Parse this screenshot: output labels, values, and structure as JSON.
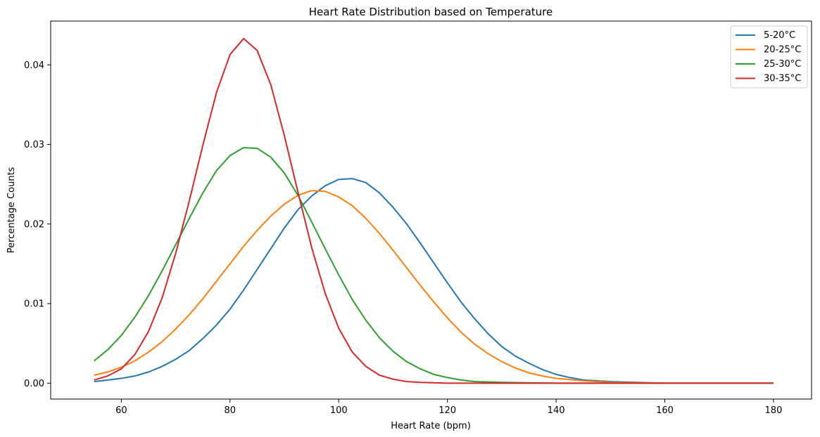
{
  "chart_data": {
    "type": "line",
    "title": "Heart Rate Distribution based on Temperature",
    "xlabel": "Heart Rate (bpm)",
    "ylabel": "Percentage Counts",
    "xlim": [
      47,
      187
    ],
    "ylim": [
      -0.002,
      0.0455
    ],
    "xticks": [
      "60",
      "80",
      "100",
      "120",
      "140",
      "160",
      "180"
    ],
    "yticks": [
      "0.00",
      "0.01",
      "0.02",
      "0.03",
      "0.04"
    ],
    "grid": false,
    "legend_position": "top-right",
    "series": [
      {
        "name": "5-20°C",
        "color": "#1f77b4",
        "points": [
          [
            55,
            0.0002
          ],
          [
            57.5,
            0.0004
          ],
          [
            60,
            0.0006
          ],
          [
            62.5,
            0.0009
          ],
          [
            65,
            0.0014
          ],
          [
            67.5,
            0.0021
          ],
          [
            70,
            0.003
          ],
          [
            72.5,
            0.0041
          ],
          [
            75,
            0.0056
          ],
          [
            77.5,
            0.0073
          ],
          [
            80,
            0.0093
          ],
          [
            82.5,
            0.0117
          ],
          [
            85,
            0.0143
          ],
          [
            87.5,
            0.0169
          ],
          [
            90,
            0.0195
          ],
          [
            92.5,
            0.0218
          ],
          [
            95,
            0.0235
          ],
          [
            97.5,
            0.0248
          ],
          [
            100,
            0.0256
          ],
          [
            102.5,
            0.0257
          ],
          [
            105,
            0.0252
          ],
          [
            107.5,
            0.0239
          ],
          [
            110,
            0.0221
          ],
          [
            112.5,
            0.02
          ],
          [
            115,
            0.0176
          ],
          [
            117.5,
            0.0151
          ],
          [
            120,
            0.0126
          ],
          [
            122.5,
            0.0102
          ],
          [
            125,
            0.0081
          ],
          [
            127.5,
            0.0062
          ],
          [
            130,
            0.0046
          ],
          [
            132.5,
            0.0034
          ],
          [
            135,
            0.0025
          ],
          [
            137.5,
            0.0017
          ],
          [
            140,
            0.0011
          ],
          [
            142.5,
            0.0007
          ],
          [
            145,
            0.0004
          ],
          [
            147.5,
            0.0003
          ],
          [
            150,
            0.0002
          ],
          [
            155,
            0.0001
          ],
          [
            160,
            0
          ],
          [
            170,
            0
          ],
          [
            180,
            0
          ]
        ]
      },
      {
        "name": "20-25°C",
        "color": "#ff7f0e",
        "points": [
          [
            55,
            0.001
          ],
          [
            57.5,
            0.0014
          ],
          [
            60,
            0.002
          ],
          [
            62.5,
            0.0028
          ],
          [
            65,
            0.0039
          ],
          [
            67.5,
            0.0052
          ],
          [
            70,
            0.0068
          ],
          [
            72.5,
            0.0086
          ],
          [
            75,
            0.0106
          ],
          [
            77.5,
            0.0128
          ],
          [
            80,
            0.015
          ],
          [
            82.5,
            0.0172
          ],
          [
            85,
            0.0192
          ],
          [
            87.5,
            0.021
          ],
          [
            90,
            0.0225
          ],
          [
            92.5,
            0.0236
          ],
          [
            95,
            0.0242
          ],
          [
            97.5,
            0.0241
          ],
          [
            100,
            0.0234
          ],
          [
            102.5,
            0.0223
          ],
          [
            105,
            0.0207
          ],
          [
            107.5,
            0.0188
          ],
          [
            110,
            0.0167
          ],
          [
            112.5,
            0.0145
          ],
          [
            115,
            0.0123
          ],
          [
            117.5,
            0.0102
          ],
          [
            120,
            0.0082
          ],
          [
            122.5,
            0.0064
          ],
          [
            125,
            0.0049
          ],
          [
            127.5,
            0.0037
          ],
          [
            130,
            0.0027
          ],
          [
            132.5,
            0.0019
          ],
          [
            135,
            0.0013
          ],
          [
            137.5,
            0.0009
          ],
          [
            140,
            0.0006
          ],
          [
            145,
            0.0003
          ],
          [
            150,
            0.0001
          ],
          [
            160,
            0
          ],
          [
            170,
            0
          ],
          [
            180,
            0
          ]
        ]
      },
      {
        "name": "25-30°C",
        "color": "#2ca02c",
        "points": [
          [
            55,
            0.0028
          ],
          [
            57.5,
            0.0042
          ],
          [
            60,
            0.006
          ],
          [
            62.5,
            0.0083
          ],
          [
            65,
            0.011
          ],
          [
            67.5,
            0.0141
          ],
          [
            70,
            0.0174
          ],
          [
            72.5,
            0.0207
          ],
          [
            75,
            0.0239
          ],
          [
            77.5,
            0.0267
          ],
          [
            80,
            0.0286
          ],
          [
            82.5,
            0.0296
          ],
          [
            85,
            0.0295
          ],
          [
            87.5,
            0.0284
          ],
          [
            90,
            0.0264
          ],
          [
            92.5,
            0.0236
          ],
          [
            95,
            0.0203
          ],
          [
            97.5,
            0.0169
          ],
          [
            100,
            0.0136
          ],
          [
            102.5,
            0.0105
          ],
          [
            105,
            0.0079
          ],
          [
            107.5,
            0.0057
          ],
          [
            110,
            0.004
          ],
          [
            112.5,
            0.0027
          ],
          [
            115,
            0.0018
          ],
          [
            117.5,
            0.0011
          ],
          [
            120,
            0.0007
          ],
          [
            122.5,
            0.0004
          ],
          [
            125,
            0.0002
          ],
          [
            130,
            0.0001
          ],
          [
            140,
            0
          ],
          [
            160,
            0
          ],
          [
            180,
            0
          ]
        ]
      },
      {
        "name": "30-35°C",
        "color": "#d62728",
        "points": [
          [
            55,
            0.0004
          ],
          [
            57.5,
            0.0009
          ],
          [
            60,
            0.0018
          ],
          [
            62.5,
            0.0036
          ],
          [
            65,
            0.0065
          ],
          [
            67.5,
            0.0107
          ],
          [
            70,
            0.0163
          ],
          [
            72.5,
            0.0229
          ],
          [
            75,
            0.0299
          ],
          [
            77.5,
            0.0365
          ],
          [
            80,
            0.0413
          ],
          [
            82.5,
            0.0433
          ],
          [
            85,
            0.0418
          ],
          [
            87.5,
            0.0375
          ],
          [
            90,
            0.0311
          ],
          [
            92.5,
            0.024
          ],
          [
            95,
            0.0171
          ],
          [
            97.5,
            0.0113
          ],
          [
            100,
            0.0069
          ],
          [
            102.5,
            0.0039
          ],
          [
            105,
            0.0021
          ],
          [
            107.5,
            0.001
          ],
          [
            110,
            0.0005
          ],
          [
            112.5,
            0.0002
          ],
          [
            115,
            0.0001
          ],
          [
            120,
            0
          ],
          [
            140,
            0
          ],
          [
            160,
            0
          ],
          [
            180,
            0
          ]
        ]
      }
    ]
  }
}
